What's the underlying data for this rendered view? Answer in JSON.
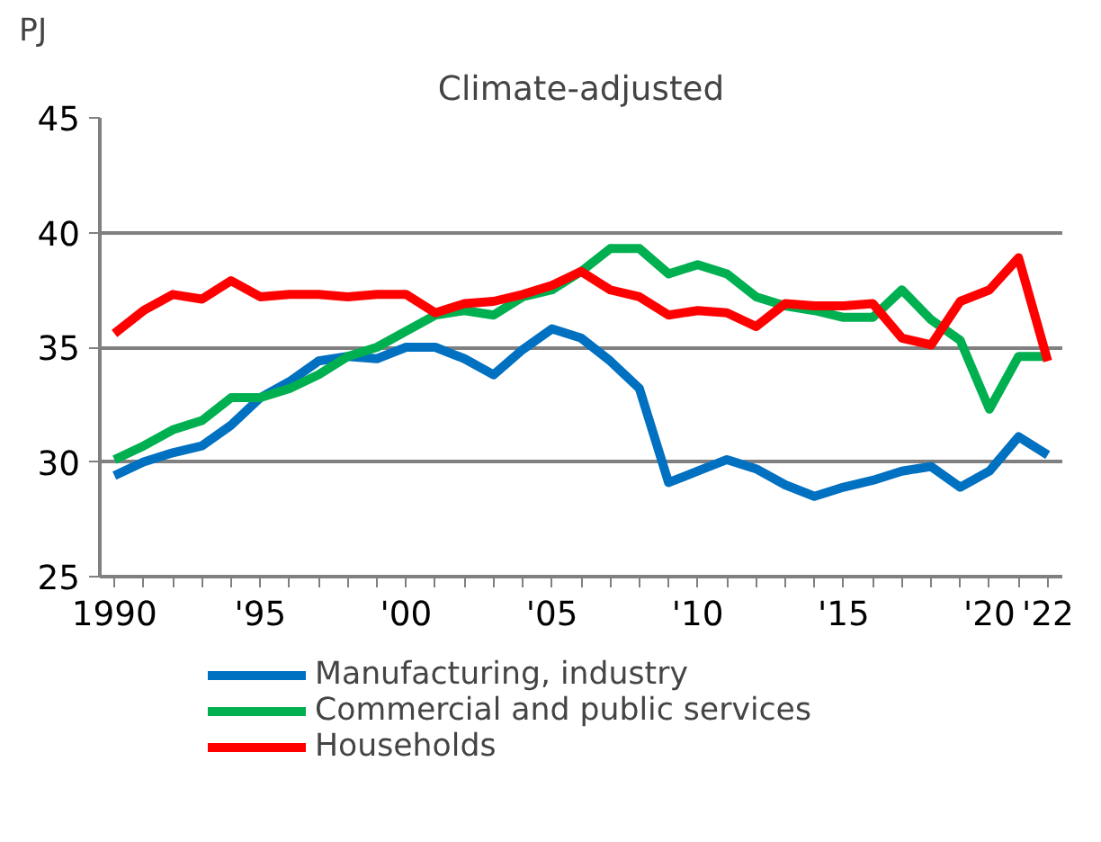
{
  "chart_data": {
    "type": "line",
    "subtitle": "Climate-adjusted",
    "ylabel": "PJ",
    "x": [
      1990,
      1991,
      1992,
      1993,
      1994,
      1995,
      1996,
      1997,
      1998,
      1999,
      2000,
      2001,
      2002,
      2003,
      2004,
      2005,
      2006,
      2007,
      2008,
      2009,
      2010,
      2011,
      2012,
      2013,
      2014,
      2015,
      2016,
      2017,
      2018,
      2019,
      2020,
      2021,
      2022
    ],
    "series": [
      {
        "name": "Manufacturing, industry",
        "color": "#0070c0",
        "values": [
          29.4,
          30.0,
          30.4,
          30.7,
          31.6,
          32.8,
          33.5,
          34.4,
          34.6,
          34.5,
          35.0,
          35.0,
          34.5,
          33.8,
          34.9,
          35.8,
          35.4,
          34.4,
          33.2,
          29.1,
          29.6,
          30.1,
          29.7,
          29.0,
          28.5,
          28.9,
          29.2,
          29.6,
          29.8,
          28.9,
          29.6,
          31.1,
          30.3
        ]
      },
      {
        "name": "Commercial and public services",
        "color": "#00b050",
        "values": [
          30.1,
          30.7,
          31.4,
          31.8,
          32.8,
          32.8,
          33.2,
          33.8,
          34.6,
          35.0,
          35.7,
          36.4,
          36.6,
          36.4,
          37.2,
          37.5,
          38.3,
          39.3,
          39.3,
          38.2,
          38.6,
          38.2,
          37.2,
          36.8,
          36.6,
          36.3,
          36.3,
          37.5,
          36.2,
          35.3,
          32.3,
          34.6,
          34.6
        ]
      },
      {
        "name": "Households",
        "color": "#ff0000",
        "values": [
          35.6,
          36.6,
          37.3,
          37.1,
          37.9,
          37.2,
          37.3,
          37.3,
          37.2,
          37.3,
          37.3,
          36.5,
          36.9,
          37.0,
          37.3,
          37.7,
          38.3,
          37.5,
          37.2,
          36.4,
          36.6,
          36.5,
          35.9,
          36.9,
          36.8,
          36.8,
          36.9,
          35.4,
          35.1,
          37.0,
          37.5,
          38.9,
          34.4
        ]
      }
    ],
    "xlim": [
      1989.5,
      2022.5
    ],
    "xticks": [
      {
        "value": 1990,
        "label": "1990"
      },
      {
        "value": 1995,
        "label": "'95"
      },
      {
        "value": 2000,
        "label": "'00"
      },
      {
        "value": 2005,
        "label": "'05"
      },
      {
        "value": 2010,
        "label": "'10"
      },
      {
        "value": 2015,
        "label": "'15"
      },
      {
        "value": 2020,
        "label": "'20"
      },
      {
        "value": 2022,
        "label": "'22"
      }
    ],
    "ylim": [
      25,
      45
    ],
    "yticks": [
      25,
      30,
      35,
      40,
      45
    ],
    "grid": "y",
    "legend": "bottom",
    "line_style": "solid"
  }
}
